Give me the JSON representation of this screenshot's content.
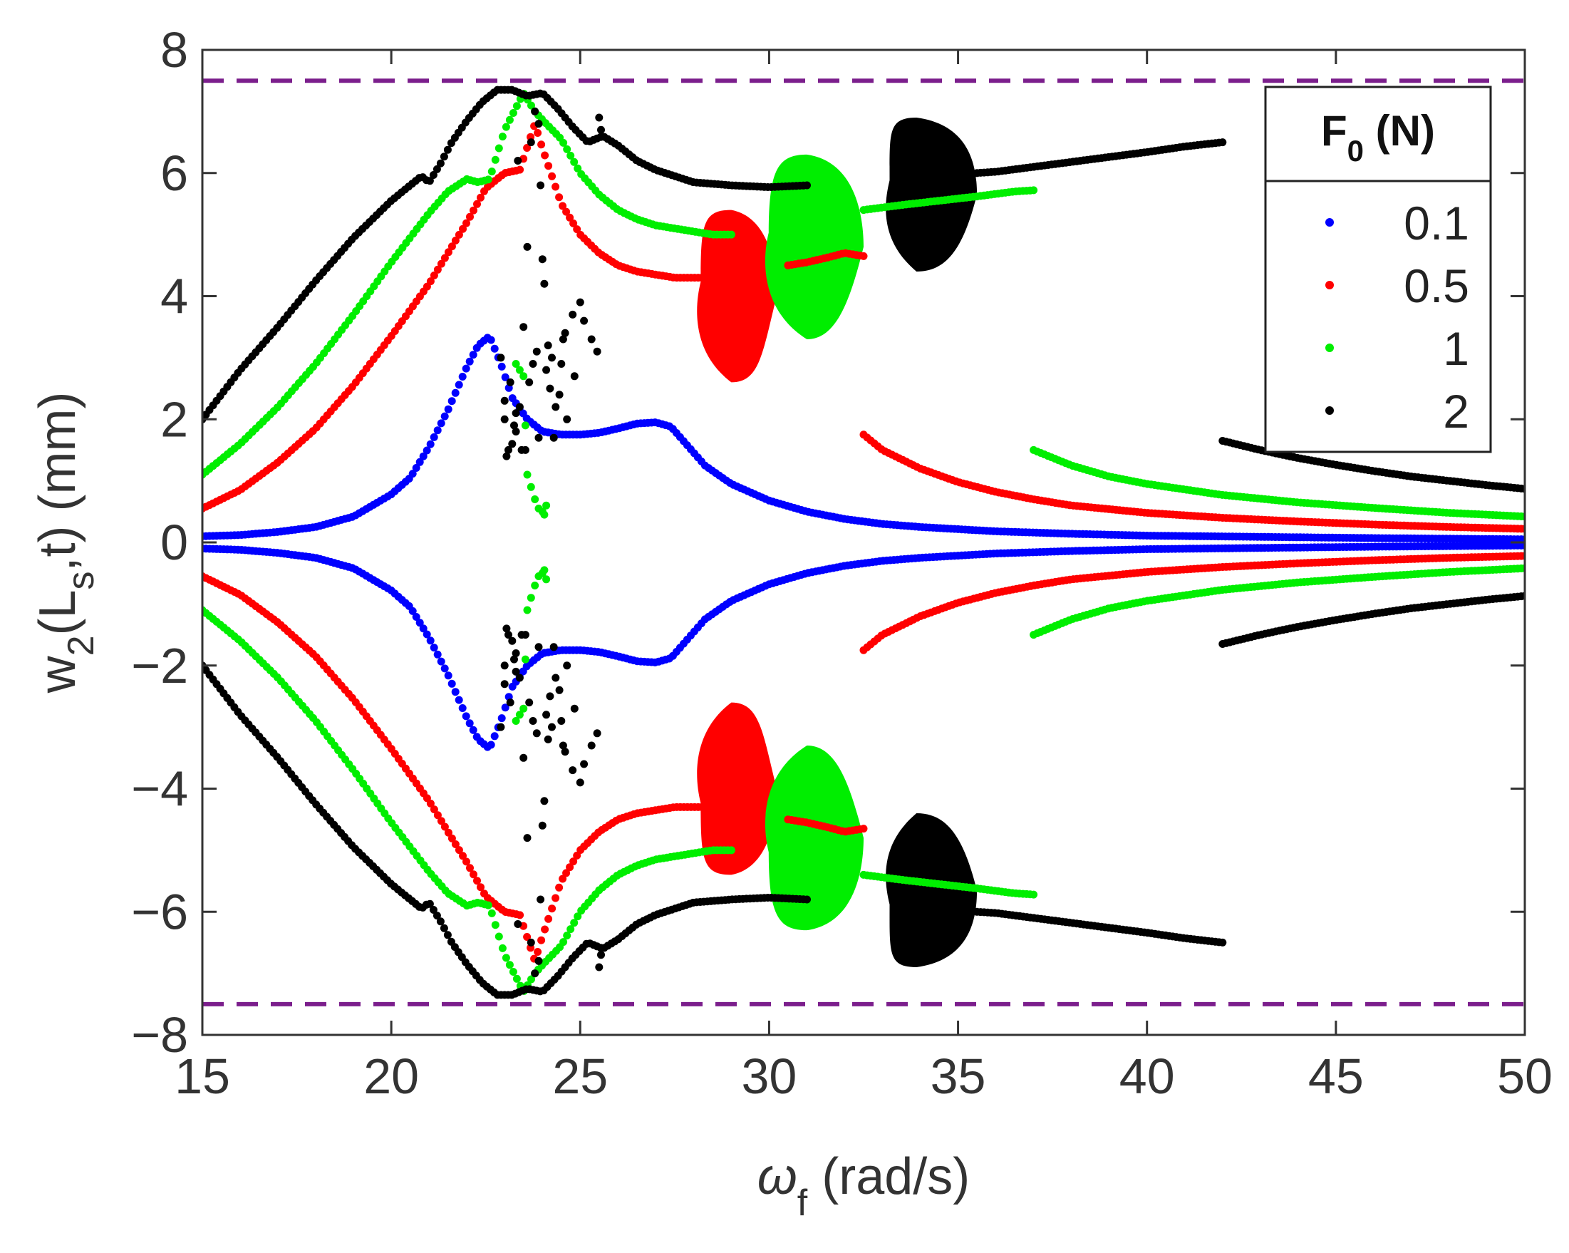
{
  "chart_data": {
    "type": "scatter",
    "title": "",
    "xlabel": {
      "symbol": "ω",
      "sub": "f",
      "rest": " (rad/s)"
    },
    "ylabel": {
      "pre": "w",
      "sub1": "2",
      "mid": "(L",
      "sub2": "s",
      "post": ",t) (mm)"
    },
    "xlim": [
      15,
      50
    ],
    "ylim": [
      -8,
      8
    ],
    "xticks": [
      15,
      20,
      25,
      30,
      35,
      40,
      45,
      50
    ],
    "yticks": [
      8,
      6,
      4,
      2,
      0,
      -2,
      -4,
      -6,
      -8
    ],
    "ytick_labels": [
      "8",
      "6",
      "4",
      "2",
      "0",
      "−2",
      "−4",
      "−6",
      "−8"
    ],
    "grid": false,
    "limit_lines": {
      "values": [
        7.5,
        -7.5
      ],
      "color": "#7B1E8C",
      "style": "dashed"
    },
    "legend": {
      "title": "F",
      "title_sub": "0",
      "title_rest": " (N)",
      "position": "top-right",
      "entries": [
        {
          "label": "0.1",
          "color": "#0000FF"
        },
        {
          "label": "0.5",
          "color": "#FF0000"
        },
        {
          "label": "1",
          "color": "#00EE00"
        },
        {
          "label": "2",
          "color": "#000000"
        }
      ]
    },
    "series": [
      {
        "name": "0.1",
        "color": "#0000FF",
        "branches": [
          {
            "x": [
              15,
              16,
              17,
              18,
              19,
              20,
              20.5,
              21,
              21.5,
              22,
              22.3,
              22.6,
              22.9,
              23.2,
              23.6,
              24.0,
              24.5,
              25.0,
              25.5,
              26.0,
              26.5,
              27.0,
              27.4,
              27.8,
              28.3,
              29.0,
              30.0,
              31.0,
              32.0,
              33.0,
              34.0,
              36.0,
              38.0,
              40.0,
              43.0,
              46.0,
              50.0
            ],
            "y": [
              0.1,
              0.12,
              0.17,
              0.25,
              0.42,
              0.78,
              1.05,
              1.55,
              2.15,
              2.85,
              3.2,
              3.35,
              2.9,
              2.35,
              2.0,
              1.8,
              1.75,
              1.75,
              1.78,
              1.85,
              1.93,
              1.95,
              1.88,
              1.6,
              1.25,
              0.95,
              0.68,
              0.5,
              0.38,
              0.3,
              0.25,
              0.18,
              0.14,
              0.11,
              0.09,
              0.07,
              0.05
            ]
          }
        ]
      },
      {
        "name": "0.5",
        "color": "#FF0000",
        "branches": [
          {
            "x": [
              15,
              16,
              17,
              18,
              19,
              20,
              21,
              22,
              22.5,
              23.0,
              23.4,
              23.8,
              24.0,
              24.5,
              25.0,
              25.5,
              26.0,
              26.5,
              27.0,
              27.5,
              28.0,
              28.5
            ],
            "y": [
              0.55,
              0.85,
              1.3,
              1.85,
              2.55,
              3.35,
              4.2,
              5.2,
              5.75,
              6.0,
              6.05,
              6.8,
              6.4,
              5.5,
              5.0,
              4.7,
              4.5,
              4.4,
              4.35,
              4.3,
              4.3,
              4.3
            ]
          },
          {
            "x": [
              30.5,
              31.0,
              31.5,
              32.0,
              32.5
            ],
            "y": [
              4.5,
              4.55,
              4.62,
              4.7,
              4.65
            ]
          },
          {
            "x": [
              32.5,
              33,
              34,
              35,
              36,
              37,
              38,
              40,
              42,
              44,
              46,
              48,
              50
            ],
            "y": [
              1.75,
              1.5,
              1.2,
              0.98,
              0.82,
              0.7,
              0.6,
              0.48,
              0.4,
              0.34,
              0.29,
              0.25,
              0.22
            ]
          }
        ]
      },
      {
        "name": "1",
        "color": "#00EE00",
        "branches": [
          {
            "x": [
              15,
              16,
              17,
              18,
              19,
              20,
              21,
              21.5,
              22.0,
              22.3,
              22.6,
              23.0,
              23.5,
              23.8,
              24.1,
              24.5,
              25.0,
              25.5,
              26.0,
              26.5,
              27.0,
              27.5,
              28.0,
              28.5,
              29.0
            ],
            "y": [
              1.1,
              1.6,
              2.2,
              2.9,
              3.7,
              4.55,
              5.35,
              5.7,
              5.9,
              5.85,
              5.9,
              6.7,
              7.3,
              7.0,
              6.8,
              6.55,
              6.0,
              5.65,
              5.4,
              5.25,
              5.15,
              5.1,
              5.05,
              5.0,
              5.0
            ]
          },
          {
            "x": [
              32.5,
              33.5,
              34.5,
              35.5,
              36.5,
              37.0
            ],
            "y": [
              5.4,
              5.48,
              5.55,
              5.62,
              5.7,
              5.72
            ]
          },
          {
            "x": [
              37,
              38,
              39,
              40,
              42,
              44,
              46,
              48,
              50
            ],
            "y": [
              1.5,
              1.25,
              1.07,
              0.95,
              0.77,
              0.65,
              0.56,
              0.48,
              0.42
            ]
          }
        ]
      },
      {
        "name": "2",
        "color": "#000000",
        "branches": [
          {
            "x": [
              15,
              16,
              17,
              18,
              19,
              20,
              20.8,
              21.0,
              21.3,
              21.6,
              22.0,
              22.4,
              22.8,
              23.2,
              23.6,
              24.0,
              24.4,
              24.8,
              25.2,
              25.6,
              26.0,
              26.5,
              27.0,
              27.5,
              28.0,
              29.0,
              30.0,
              31.0
            ],
            "y": [
              2.0,
              2.8,
              3.5,
              4.25,
              4.95,
              5.55,
              5.95,
              5.85,
              6.15,
              6.5,
              6.85,
              7.15,
              7.35,
              7.35,
              7.25,
              7.3,
              7.05,
              6.75,
              6.5,
              6.6,
              6.45,
              6.2,
              6.05,
              5.95,
              5.85,
              5.8,
              5.77,
              5.8
            ]
          },
          {
            "x": [
              35.5,
              36,
              37,
              38,
              39,
              40,
              41,
              42
            ],
            "y": [
              6.0,
              6.02,
              6.1,
              6.18,
              6.26,
              6.34,
              6.43,
              6.5
            ]
          },
          {
            "x": [
              42,
              43,
              44,
              45,
              46,
              47,
              48,
              49,
              50
            ],
            "y": [
              1.65,
              1.5,
              1.37,
              1.26,
              1.16,
              1.07,
              1.0,
              0.93,
              0.87
            ]
          }
        ]
      }
    ],
    "scattered_points": {
      "2": {
        "x": [
          23.0,
          23.1,
          23.2,
          23.3,
          23.4,
          23.5,
          23.6,
          23.7,
          23.8,
          23.9,
          24.0,
          24.1,
          24.2,
          24.3,
          24.5,
          24.6,
          24.8,
          25.0,
          25.1,
          25.3,
          22.9,
          23.0,
          23.25,
          23.45,
          23.65,
          23.85,
          24.05,
          24.25,
          24.45,
          24.65,
          24.85,
          23.15,
          23.55,
          23.75,
          24.15,
          23.35,
          23.95,
          24.35,
          24.55,
          25.5,
          25.55,
          25.45,
          23.05,
          23.3,
          23.9
        ],
        "y": [
          2.0,
          1.5,
          1.6,
          1.8,
          2.2,
          3.5,
          4.8,
          6.5,
          7.0,
          6.8,
          4.6,
          2.8,
          2.5,
          1.7,
          2.9,
          3.4,
          3.7,
          3.9,
          3.6,
          3.3,
          3.0,
          2.3,
          1.9,
          1.5,
          2.6,
          3.1,
          4.2,
          3.0,
          2.4,
          2.0,
          2.7,
          2.6,
          1.5,
          2.9,
          3.2,
          6.2,
          5.8,
          2.2,
          3.3,
          6.9,
          6.7,
          3.1,
          1.4,
          2.1,
          1.7
        ]
      },
      "1": {
        "x": [
          23.3,
          23.4,
          23.5,
          23.55,
          23.6,
          23.7,
          23.8,
          23.9,
          24.0,
          24.05,
          24.1
        ],
        "y": [
          2.9,
          2.8,
          2.7,
          1.9,
          1.1,
          0.9,
          0.7,
          0.55,
          0.5,
          0.45,
          0.6
        ]
      }
    },
    "limit_cycle_bands": [
      {
        "series": "0.5",
        "color": "#FF0000",
        "x_range": [
          28.0,
          30.2
        ],
        "center": 29.0,
        "y_min": 2.6,
        "y_max": 5.4
      },
      {
        "series": "1",
        "color": "#00EE00",
        "x_range": [
          29.8,
          32.5
        ],
        "center": 31.0,
        "y_min": 3.3,
        "y_max": 6.3
      },
      {
        "series": "2",
        "color": "#000000",
        "x_range": [
          33.0,
          35.5
        ],
        "center": 33.9,
        "y_min": 4.4,
        "y_max": 6.9
      }
    ]
  }
}
